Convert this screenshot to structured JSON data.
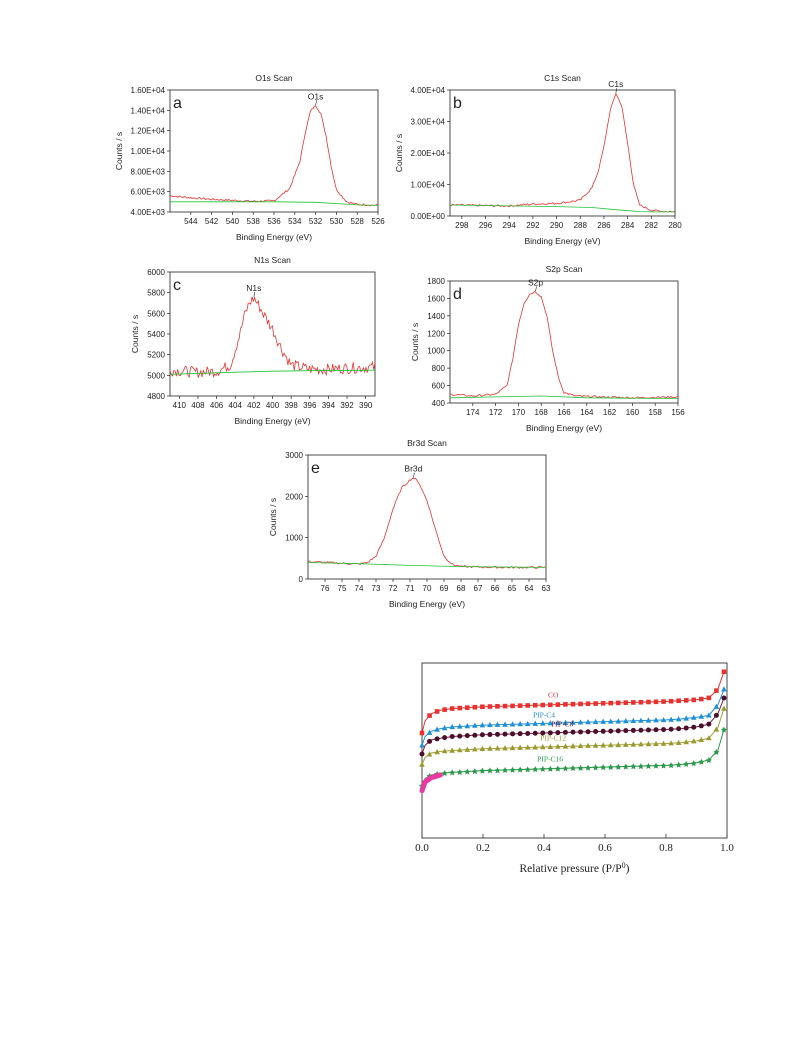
{
  "chart_data": [
    {
      "type": "line",
      "panel_letter": "a",
      "title": "O1s Scan",
      "xlabel": "Binding Energy (eV)",
      "ylabel": "Counts / s",
      "x_reversed": true,
      "xlim": [
        546,
        526
      ],
      "ylim": [
        4000,
        16000
      ],
      "xticks": [
        544,
        542,
        540,
        538,
        536,
        534,
        532,
        530,
        528,
        526
      ],
      "yticks": [
        4000,
        6000,
        8000,
        10000,
        12000,
        14000,
        16000
      ],
      "ytick_labels": [
        "4.00E+03",
        "6.00E+03",
        "8.00E+03",
        "1.00E+04",
        "1.20E+04",
        "1.40E+04",
        "1.60E+04"
      ],
      "peak_label": "O1s",
      "peak": {
        "x": 532,
        "y": 14500
      },
      "series": [
        {
          "role": "spectrum",
          "color": "#e8322f",
          "x": [
            546,
            544,
            542,
            540,
            538,
            536,
            534.5,
            533.5,
            533,
            532.5,
            532,
            531.5,
            531,
            530.5,
            530,
            529,
            528,
            527,
            526
          ],
          "y": [
            5600,
            5400,
            5250,
            5150,
            5050,
            5100,
            6300,
            9000,
            11800,
            13900,
            14500,
            13700,
            11500,
            8500,
            6200,
            5000,
            4750,
            4700,
            4650
          ]
        },
        {
          "role": "background",
          "color": "#22c33a",
          "x": [
            546,
            540,
            536,
            532,
            528,
            526
          ],
          "y": [
            5000,
            5000,
            5000,
            4950,
            4700,
            4650
          ]
        }
      ]
    },
    {
      "type": "line",
      "panel_letter": "b",
      "title": "C1s Scan",
      "xlabel": "Binding Energy (eV)",
      "ylabel": "Counts / s",
      "x_reversed": true,
      "xlim": [
        299,
        280
      ],
      "ylim": [
        0,
        40000
      ],
      "xticks": [
        298,
        296,
        294,
        292,
        290,
        288,
        286,
        284,
        282,
        280
      ],
      "yticks": [
        0,
        10000,
        20000,
        30000,
        40000
      ],
      "ytick_labels": [
        "0.00E+00",
        "1.00E+04",
        "2.00E+04",
        "3.00E+04",
        "4.00E+04"
      ],
      "peak_label": "C1s",
      "peak": {
        "x": 285,
        "y": 39000
      },
      "series": [
        {
          "role": "spectrum",
          "color": "#e8322f",
          "x": [
            299,
            296,
            294,
            292,
            290,
            288,
            287,
            286.5,
            286,
            285.5,
            285,
            284.5,
            284,
            283.5,
            283,
            282,
            281,
            280
          ],
          "y": [
            3500,
            3300,
            3200,
            3800,
            4000,
            5000,
            9000,
            14000,
            22000,
            33000,
            39000,
            35000,
            23000,
            10000,
            3500,
            1800,
            1500,
            1400
          ]
        },
        {
          "role": "background",
          "color": "#22c33a",
          "x": [
            299,
            294,
            290,
            287,
            285,
            283,
            282,
            280
          ],
          "y": [
            3500,
            3200,
            3000,
            2700,
            2000,
            1400,
            1300,
            1300
          ]
        }
      ]
    },
    {
      "type": "line",
      "panel_letter": "c",
      "title": "N1s Scan",
      "xlabel": "Binding Energy (eV)",
      "ylabel": "Counts / s",
      "x_reversed": true,
      "xlim": [
        411,
        389
      ],
      "ylim": [
        4800,
        6000
      ],
      "xticks": [
        410,
        408,
        406,
        404,
        402,
        400,
        398,
        396,
        394,
        392,
        390
      ],
      "yticks": [
        4800,
        5000,
        5200,
        5400,
        5600,
        5800,
        6000
      ],
      "ytick_labels": [
        "4800",
        "5000",
        "5200",
        "5400",
        "5600",
        "5800",
        "6000"
      ],
      "peak_label": "N1s",
      "peak": {
        "x": 402,
        "y": 5760
      },
      "noisy": true,
      "series": [
        {
          "role": "spectrum",
          "color": "#e8322f",
          "x": [
            411,
            408,
            406,
            404.5,
            403.5,
            403,
            402.5,
            402,
            401.5,
            401,
            400,
            399,
            398,
            396,
            394,
            392,
            389
          ],
          "y": [
            5050,
            5030,
            5040,
            5100,
            5400,
            5580,
            5700,
            5750,
            5680,
            5600,
            5450,
            5250,
            5100,
            5060,
            5060,
            5070,
            5080
          ]
        },
        {
          "role": "background",
          "color": "#22c33a",
          "x": [
            411,
            404,
            400,
            396,
            389
          ],
          "y": [
            5010,
            5030,
            5040,
            5045,
            5050
          ]
        }
      ]
    },
    {
      "type": "line",
      "panel_letter": "d",
      "title": "S2p Scan",
      "xlabel": "Binding Energy (eV)",
      "ylabel": "Counts / s",
      "x_reversed": true,
      "xlim": [
        176,
        156
      ],
      "ylim": [
        400,
        1800
      ],
      "xticks": [
        174,
        172,
        170,
        168,
        166,
        164,
        162,
        160,
        158,
        156
      ],
      "yticks": [
        400,
        600,
        800,
        1000,
        1200,
        1400,
        1600,
        1800
      ],
      "ytick_labels": [
        "400",
        "600",
        "800",
        "1000",
        "1200",
        "1400",
        "1600",
        "1800"
      ],
      "peak_label": "S2p",
      "peak": {
        "x": 168.5,
        "y": 1680
      },
      "series": [
        {
          "role": "spectrum",
          "color": "#e8322f",
          "x": [
            176,
            174,
            172,
            171,
            170.5,
            170,
            169.5,
            169,
            168.5,
            168,
            167.5,
            167,
            166.5,
            166,
            165,
            163,
            160,
            156
          ],
          "y": [
            500,
            480,
            500,
            600,
            900,
            1300,
            1550,
            1650,
            1680,
            1620,
            1400,
            1000,
            700,
            520,
            480,
            470,
            460,
            470
          ]
        },
        {
          "role": "background",
          "color": "#22c33a",
          "x": [
            176,
            172,
            168,
            164,
            160,
            156
          ],
          "y": [
            460,
            470,
            480,
            460,
            455,
            450
          ]
        }
      ]
    },
    {
      "type": "line",
      "panel_letter": "e",
      "title": "Br3d Scan",
      "xlabel": "Binding Energy (eV)",
      "ylabel": "Counts / s",
      "x_reversed": true,
      "xlim": [
        77,
        63
      ],
      "ylim": [
        0,
        3000
      ],
      "xticks": [
        76,
        75,
        74,
        73,
        72,
        71,
        70,
        69,
        68,
        67,
        66,
        65,
        64,
        63
      ],
      "yticks": [
        0,
        1000,
        2000,
        3000
      ],
      "ytick_labels": [
        "0",
        "1000",
        "2000",
        "3000"
      ],
      "peak_label": "Br3d",
      "peak": {
        "x": 70.8,
        "y": 2450
      },
      "series": [
        {
          "role": "spectrum",
          "color": "#e8322f",
          "x": [
            77,
            75,
            74,
            73.5,
            73,
            72.5,
            72,
            71.5,
            71,
            70.8,
            70.5,
            70,
            69.5,
            69,
            68.5,
            68,
            67,
            65,
            63
          ],
          "y": [
            420,
            380,
            360,
            400,
            550,
            1000,
            1700,
            2200,
            2400,
            2450,
            2350,
            1900,
            1200,
            550,
            350,
            300,
            290,
            280,
            280
          ]
        },
        {
          "role": "background",
          "color": "#22c33a",
          "x": [
            77,
            74,
            71,
            68,
            63
          ],
          "y": [
            400,
            370,
            330,
            300,
            280
          ]
        }
      ]
    },
    {
      "type": "line",
      "title": "",
      "xlabel": "Relative pressure (P/P",
      "xlabel_sup": "0",
      "xlabel_close": ")",
      "ylabel": "",
      "xlim": [
        0,
        1.0
      ],
      "ylim": [
        0,
        1
      ],
      "xticks": [
        0.0,
        0.2,
        0.4,
        0.6,
        0.8,
        1.0
      ],
      "xtick_labels": [
        "0.0",
        "0.2",
        "0.4",
        "0.6",
        "0.8",
        "1.0"
      ],
      "markers": true,
      "series": [
        {
          "name": "CO",
          "color": "#e8322f",
          "marker_color": "#e8322f",
          "x": [
            0.0,
            0.01,
            0.03,
            0.06,
            0.1,
            0.2,
            0.3,
            0.4,
            0.5,
            0.6,
            0.7,
            0.8,
            0.85,
            0.9,
            0.94,
            0.97,
            0.99
          ],
          "y": [
            0.6,
            0.67,
            0.71,
            0.73,
            0.74,
            0.75,
            0.755,
            0.76,
            0.765,
            0.77,
            0.775,
            0.78,
            0.785,
            0.79,
            0.8,
            0.85,
            0.95
          ]
        },
        {
          "name": "PIP-C4",
          "color": "#1f8fd6",
          "marker_color": "#1f8fd6",
          "x": [
            0.0,
            0.01,
            0.03,
            0.06,
            0.1,
            0.2,
            0.3,
            0.4,
            0.5,
            0.6,
            0.7,
            0.8,
            0.85,
            0.9,
            0.94,
            0.97,
            0.99
          ],
          "y": [
            0.53,
            0.58,
            0.61,
            0.625,
            0.635,
            0.645,
            0.65,
            0.655,
            0.66,
            0.665,
            0.67,
            0.675,
            0.68,
            0.69,
            0.7,
            0.76,
            0.85
          ]
        },
        {
          "name": "PIP-C8",
          "color": "#7b1d3a",
          "marker_color": "#4a0f2a",
          "x": [
            0.0,
            0.01,
            0.03,
            0.06,
            0.1,
            0.2,
            0.3,
            0.4,
            0.5,
            0.6,
            0.7,
            0.8,
            0.85,
            0.9,
            0.94,
            0.97,
            0.99
          ],
          "y": [
            0.48,
            0.53,
            0.56,
            0.57,
            0.58,
            0.59,
            0.595,
            0.6,
            0.605,
            0.61,
            0.615,
            0.62,
            0.625,
            0.635,
            0.65,
            0.71,
            0.8
          ]
        },
        {
          "name": "PIP-C12",
          "color": "#a0a040",
          "marker_color": "#9a9a2a",
          "x": [
            0.0,
            0.01,
            0.03,
            0.06,
            0.1,
            0.2,
            0.3,
            0.4,
            0.5,
            0.6,
            0.7,
            0.8,
            0.85,
            0.9,
            0.94,
            0.97,
            0.99
          ],
          "y": [
            0.42,
            0.46,
            0.485,
            0.495,
            0.5,
            0.51,
            0.515,
            0.52,
            0.525,
            0.53,
            0.535,
            0.54,
            0.545,
            0.555,
            0.57,
            0.63,
            0.74
          ]
        },
        {
          "name": "PIP-C16",
          "color": "#2a9a4a",
          "marker_color": "#2a9a4a",
          "x": [
            0.0,
            0.01,
            0.03,
            0.06,
            0.1,
            0.2,
            0.3,
            0.4,
            0.5,
            0.6,
            0.7,
            0.8,
            0.85,
            0.9,
            0.94,
            0.97,
            0.99
          ],
          "y": [
            0.3,
            0.34,
            0.36,
            0.37,
            0.375,
            0.385,
            0.39,
            0.395,
            0.4,
            0.405,
            0.41,
            0.415,
            0.42,
            0.43,
            0.445,
            0.5,
            0.62
          ]
        },
        {
          "name": "",
          "color": "#e83aa0",
          "marker_color": "#e83aa0",
          "x": [
            0.0,
            0.01,
            0.03,
            0.06
          ],
          "y": [
            0.27,
            0.32,
            0.345,
            0.36
          ]
        }
      ],
      "legend_labels": [
        "CO",
        "PIP-C4",
        "PIP-C8",
        "PIP-C12",
        "PIP-C16"
      ]
    }
  ]
}
